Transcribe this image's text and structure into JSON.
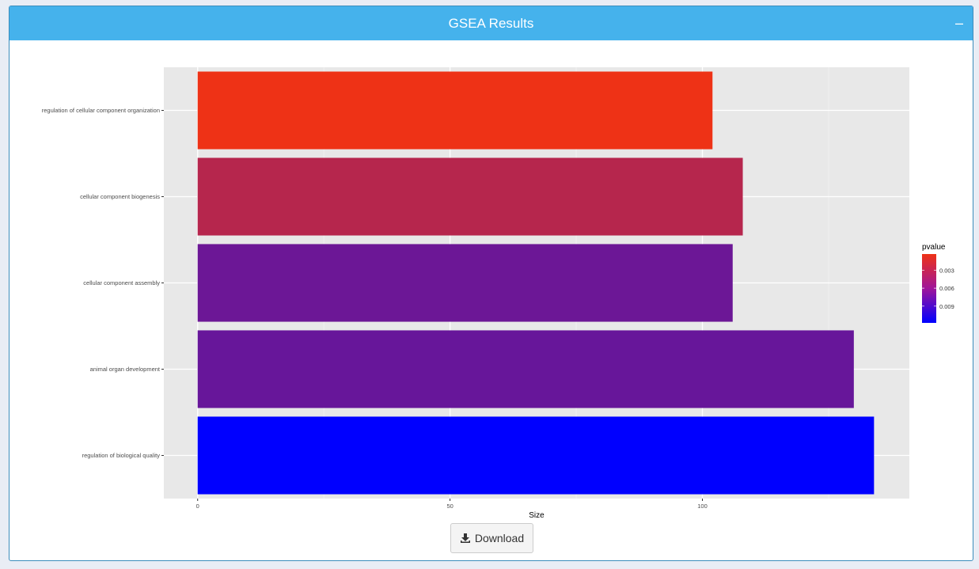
{
  "panel": {
    "title": "GSEA Results",
    "collapse_icon": "minus-icon",
    "collapse_label": "–"
  },
  "download": {
    "label": "Download",
    "icon": "download-icon"
  },
  "chart_data": {
    "type": "bar",
    "orientation": "horizontal",
    "categories": [
      "regulation of cellular component organization",
      "cellular component biogenesis",
      "cellular component assembly",
      "animal organ development",
      "regulation of biological quality"
    ],
    "values": [
      102,
      108,
      106,
      130,
      134
    ],
    "pvalue": [
      0.0003,
      0.003,
      0.0066,
      0.0068,
      0.0118
    ],
    "xlabel": "Size",
    "ylabel": "",
    "xlim": [
      -6.7,
      141
    ],
    "xticks": [
      0,
      50,
      100
    ],
    "grid": true,
    "legend": {
      "title": "pvalue",
      "position": "right",
      "ticks": [
        "0.003",
        "0.006",
        "0.009"
      ],
      "tick_values": [
        0.003,
        0.006,
        0.009
      ],
      "range": [
        0.0003,
        0.0118
      ],
      "low_color": "#ee3216",
      "high_color": "#0000ff"
    }
  }
}
